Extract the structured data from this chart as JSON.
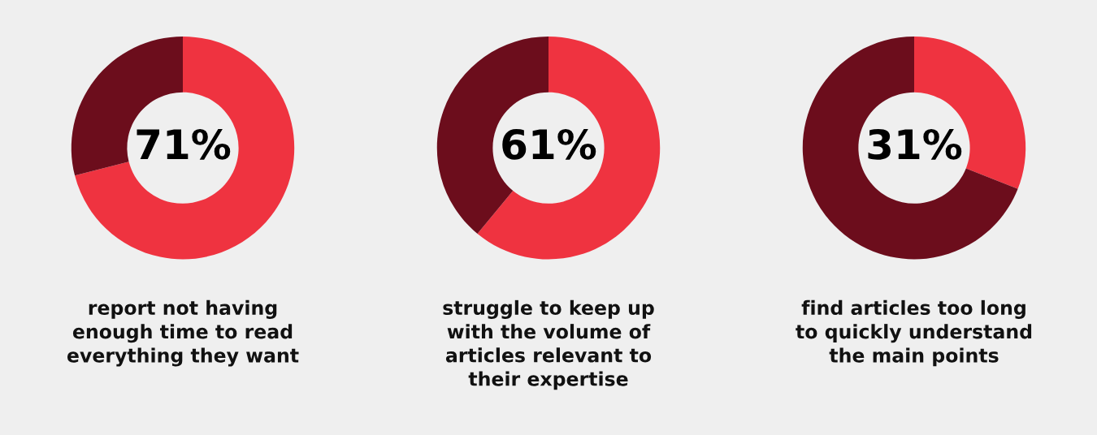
{
  "chart_data": [
    {
      "type": "donut",
      "categories": [
        null,
        null
      ],
      "values": [
        71,
        29
      ],
      "colors": [
        "#ef3340",
        "#6c0d1c"
      ],
      "value_labels": [
        "71%",
        null
      ],
      "annotations": [
        "report not having\nenough time to read\neverything they want"
      ]
    },
    {
      "type": "donut",
      "categories": [
        null,
        null
      ],
      "values": [
        61,
        39
      ],
      "colors": [
        "#ef3340",
        "#6c0d1c"
      ],
      "value_labels": [
        "61%",
        null
      ],
      "annotations": [
        "struggle to keep up\nwith the volume of\narticles relevant to\ntheir expertise"
      ]
    },
    {
      "type": "donut",
      "categories": [
        null,
        null
      ],
      "values": [
        31,
        69
      ],
      "colors": [
        "#ef3340",
        "#6c0d1c"
      ],
      "value_labels": [
        "31%",
        null
      ],
      "annotations": [
        "find articles too long\nto quickly understand\nthe main points"
      ]
    }
  ]
}
